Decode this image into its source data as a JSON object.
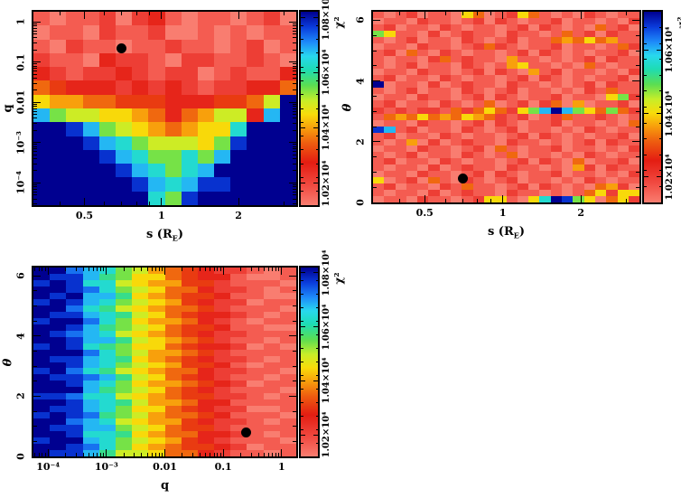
{
  "figure": {
    "background": "#ffffff",
    "frame_color": "#000000",
    "marker_color": "#000000",
    "colormap_note": "low chi2 = salmon/red, high chi2 = blue/navy (reversed rainbow)",
    "colormap_stops": [
      {
        "t": 0.0,
        "c": "#f97d70"
      },
      {
        "t": 0.1,
        "c": "#f14b42"
      },
      {
        "t": 0.22,
        "c": "#e41d12"
      },
      {
        "t": 0.32,
        "c": "#ee5d10"
      },
      {
        "t": 0.4,
        "c": "#f8a00c"
      },
      {
        "t": 0.47,
        "c": "#f8dc0a"
      },
      {
        "t": 0.54,
        "c": "#c8ee28"
      },
      {
        "t": 0.62,
        "c": "#5ade52"
      },
      {
        "t": 0.7,
        "c": "#1edcb4"
      },
      {
        "t": 0.77,
        "c": "#28d8ee"
      },
      {
        "t": 0.84,
        "c": "#1e8cfa"
      },
      {
        "t": 0.92,
        "c": "#0a3cdc"
      },
      {
        "t": 1.0,
        "c": "#000090"
      }
    ]
  },
  "chart_data": [
    {
      "type": "heatmap",
      "position": "top_left",
      "description": "chi-squared map over binary separation s and mass ratio q",
      "x": {
        "label": "s (R_E)",
        "label_parts": {
          "pre": "s (R",
          "sub": "E",
          "post": ")"
        },
        "scale": "log",
        "min": 0.316,
        "max": 3.36,
        "ticks": [
          {
            "v": 0.5,
            "t": "0.5"
          },
          {
            "v": 1,
            "t": "1"
          },
          {
            "v": 2,
            "t": "2"
          }
        ]
      },
      "y": {
        "label": "q",
        "italic": false,
        "scale": "log",
        "min": 2.8e-05,
        "max": 1.78,
        "ticks": [
          {
            "v": 1,
            "t": "1"
          },
          {
            "v": 0.1,
            "t": "0.1"
          },
          {
            "v": 0.01,
            "t": "0.01"
          },
          {
            "v": 0.001,
            "t": "10⁻³"
          },
          {
            "v": 0.0001,
            "t": "10⁻⁴"
          }
        ]
      },
      "colorbar": {
        "title": "χ²",
        "min": 10120,
        "max": 10820,
        "minor_step": 50,
        "ticks": [
          {
            "v": 10200,
            "t": "1.02×10⁴"
          },
          {
            "v": 10400,
            "t": "1.04×10⁴"
          },
          {
            "v": 10600,
            "t": "1.06×10⁴"
          },
          {
            "v": 10800,
            "t": "1.08×10⁴"
          }
        ]
      },
      "grid_encoding": "rows top-to-bottom; each hex char L (0-f) is one cell; chi2 = colorbar.min + L/15 * (colorbar.max - colorbar.min)",
      "grid": [
        "1011202310110120",
        "0110211200101011",
        "1021101121101201",
        "2110322102211210",
        "3212232122012113",
        "5433323232122335",
        "766554443334458f",
        "c9887765356883cf",
        "ffec98765677bfff",
        "fffecb988879efff",
        "ffffecb99b9cffff",
        "fffffecb9bcfffff",
        "ffffffecbceeffff",
        "fffffffb9effffff"
      ],
      "best_fit_marker": {
        "x": 0.7,
        "y": 0.22
      }
    },
    {
      "type": "heatmap",
      "position": "top_right",
      "description": "chi-squared map over binary separation s and source trajectory angle theta",
      "x": {
        "label": "s (R_E)",
        "label_parts": {
          "pre": "s (R",
          "sub": "E",
          "post": ")"
        },
        "scale": "log",
        "min": 0.316,
        "max": 3.36,
        "ticks": [
          {
            "v": 0.5,
            "t": "0.5"
          },
          {
            "v": 1,
            "t": "1"
          },
          {
            "v": 2,
            "t": "2"
          }
        ]
      },
      "y": {
        "label": "θ",
        "italic": true,
        "scale": "linear",
        "min": 0,
        "max": 6.28,
        "minor_step": 0.5,
        "ticks": [
          {
            "v": 0,
            "t": "0"
          },
          {
            "v": 2,
            "t": "2"
          },
          {
            "v": 4,
            "t": "4"
          },
          {
            "v": 6,
            "t": "6"
          }
        ]
      },
      "colorbar": {
        "title": "χ²",
        "min": 10120,
        "max": 10720,
        "minor_step": 50,
        "ticks": [
          {
            "v": 10200,
            "t": "1.02×10⁴"
          },
          {
            "v": 10400,
            "t": "1.04×10⁴"
          },
          {
            "v": 10600,
            "t": "1.06×10⁴"
          }
        ]
      },
      "grid_encoding": "rows top-to-bottom; each hex char L (0-f) is one cell; chi2 = colorbar.min + L/15 * (colorbar.max - colorbar.min)",
      "grid": [
        "101201107501275101021011",
        "011021101202101120110102",
        "120110210110120210105120",
        "971102012110211015120211",
        "101201102101201156575611",
        "011021101252101120110152",
        "120510210110120210101120",
        "101102512110611010120211",
        "101201102101671101051011",
        "011021101202106120110102",
        "120110210110120210101120",
        "f01102012110211010120211",
        "101201102101201101021511",
        "011021101202101120110792",
        "120110210150120250601120",
        "212122152575279cfc975952",
        "156575657652120125112101",
        "011021101202101120110105",
        "ec1201102101201101021011",
        "120110210110120210101120",
        "101602012110211010120211",
        "011021101205101120110102",
        "101201102101501101021011",
        "120110210110120210501120",
        "101102012110211010620211",
        "011021101202101120110102",
        "701205102101201101021011",
        "120110215110120210105620",
        "101102012110211010157277",
        "011021101277107bfe970572"
      ],
      "best_fit_marker": {
        "x": 0.7,
        "y": 0.8
      }
    },
    {
      "type": "heatmap",
      "position": "bottom_left",
      "description": "chi-squared map over mass ratio q and source trajectory angle theta",
      "x": {
        "label": "q",
        "scale": "log",
        "min": 5.62e-05,
        "max": 1.78,
        "ticks": [
          {
            "v": 0.0001,
            "t": "10⁻⁴"
          },
          {
            "v": 0.001,
            "t": "10⁻³"
          },
          {
            "v": 0.01,
            "t": "0.01"
          },
          {
            "v": 0.1,
            "t": "0.1"
          },
          {
            "v": 1,
            "t": "1"
          }
        ]
      },
      "y": {
        "label": "θ",
        "italic": true,
        "scale": "linear",
        "min": 0,
        "max": 6.28,
        "minor_step": 0.5,
        "ticks": [
          {
            "v": 0,
            "t": "0"
          },
          {
            "v": 2,
            "t": "2"
          },
          {
            "v": 4,
            "t": "4"
          },
          {
            "v": 6,
            "t": "6"
          }
        ]
      },
      "colorbar": {
        "title": "χ²",
        "min": 10120,
        "max": 10820,
        "minor_step": 50,
        "ticks": [
          {
            "v": 10200,
            "t": "1.02×10⁴"
          },
          {
            "v": 10400,
            "t": "1.04×10⁴"
          },
          {
            "v": 10600,
            "t": "1.06×10⁴"
          },
          {
            "v": 10800,
            "t": "1.08×10⁴"
          }
        ]
      },
      "grid_encoding": "rows top-to-bottom; each hex char L (0-f) is one cell; chi2 = colorbar.min + L/15 * (colorbar.max - colorbar.min)",
      "grid": [
        "ffdcb98654322101",
        "feeca97754331001",
        "efebb87664421110",
        "ffedb98755322101",
        "fefcca7654431100",
        "efecb98764322011",
        "ffdba87655421110",
        "feecba8754332101",
        "effdb97665321011",
        "ffeca98754431100",
        "fedcb87654322111",
        "ffecca8765421101",
        "efeba97754332010",
        "fffdb98665421111",
        "feecba7654322101",
        "ffecb98764431011",
        "efdba87655322110",
        "feedca8754321101",
        "ffecb97665432011",
        "fffca98754321110",
        "eedbb87654422101",
        "ffecba8665331111",
        "feecb97754322001",
        "efeda98655431110",
        "ffdcb87664322101",
        "feecc98754421111",
        "ffebba7655332101",
        "effcb98764321110",
        "ffedb97654432011",
        "feeca88755321101"
      ],
      "best_fit_marker": {
        "x": 0.25,
        "y": 0.8
      }
    }
  ]
}
